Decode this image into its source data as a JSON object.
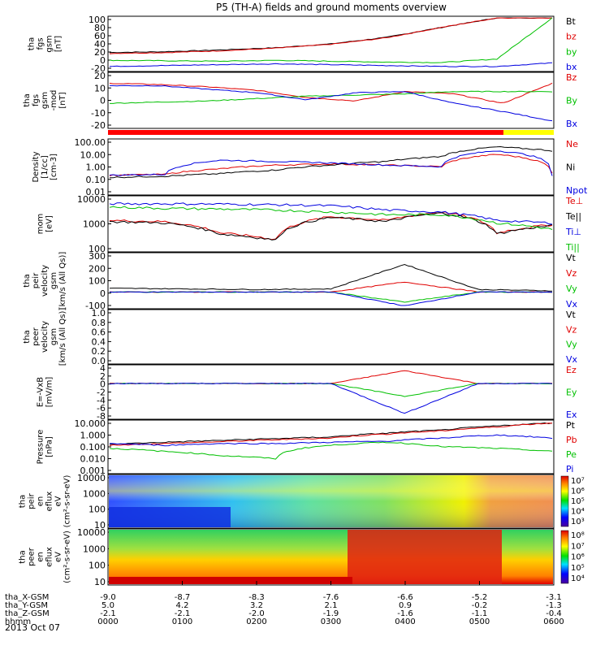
{
  "title": "P5 (TH-A) fields and ground moments overview",
  "date_label": "2013 Oct 07",
  "x_axis": {
    "rows": [
      {
        "label": "tha_X-GSM",
        "values": [
          "-9.0",
          "-8.7",
          "-8.3",
          "-7.6",
          "-6.6",
          "-5.2",
          "-3.1"
        ]
      },
      {
        "label": "tha_Y-GSM",
        "values": [
          "5.0",
          "4.2",
          "3.2",
          "2.1",
          "0.9",
          "-0.2",
          "-1.3"
        ]
      },
      {
        "label": "tha_Z-GSM",
        "values": [
          "-2.1",
          "-2.1",
          "-2.0",
          "-1.9",
          "-1.6",
          "-1.1",
          "-0.4"
        ]
      },
      {
        "label": "hhmm",
        "values": [
          "0000",
          "0100",
          "0200",
          "0300",
          "0400",
          "0500",
          "0600"
        ]
      }
    ]
  },
  "chart_data": [
    {
      "type": "line",
      "ylabel": [
        "tha",
        "fgs",
        "gsm",
        "[nT]"
      ],
      "yticks": [
        "100",
        "80",
        "60",
        "40",
        "20",
        "0",
        "-20"
      ],
      "ylim": [
        -20,
        100
      ],
      "series": [
        {
          "name": "Bt",
          "color": "#000000",
          "values": [
            20,
            22,
            26,
            31,
            40,
            55,
            78,
            100,
            100
          ]
        },
        {
          "name": "bz",
          "color": "#e00000",
          "values": [
            18,
            20,
            24,
            30,
            39,
            54,
            78,
            100,
            100
          ]
        },
        {
          "name": "by",
          "color": "#00c000",
          "values": [
            2,
            1,
            0,
            2,
            0,
            -2,
            -3,
            5,
            100
          ]
        },
        {
          "name": "bx",
          "color": "#0000e0",
          "values": [
            -12,
            -10,
            -8,
            -6,
            -8,
            -10,
            -12,
            -12,
            -4
          ]
        }
      ]
    },
    {
      "type": "line",
      "ylabel": [
        "tha",
        "fgs",
        "gsm",
        "-mod",
        "[nT]"
      ],
      "yticks": [
        "20",
        "10",
        "0",
        "-10",
        "-20"
      ],
      "ylim": [
        -25,
        20
      ],
      "series": [
        {
          "name": "Bz",
          "color": "#e00000",
          "values": [
            12,
            11,
            9,
            6,
            0,
            -3,
            5,
            3,
            -5,
            12
          ]
        },
        {
          "name": "By",
          "color": "#00c000",
          "values": [
            -5,
            -4,
            -3,
            -1,
            1,
            2,
            3,
            5,
            5,
            5
          ]
        },
        {
          "name": "Bx",
          "color": "#0000e0",
          "values": [
            10,
            10,
            7,
            4,
            -2,
            4,
            5,
            -5,
            -12,
            -20
          ]
        }
      ]
    },
    {
      "type": "line",
      "ylabel": [
        "Density",
        "[1/cc]",
        "[cm-3]"
      ],
      "yticks": [
        "100.00",
        "10.00",
        "1.00",
        "0.10",
        "0.01"
      ],
      "log": true,
      "ylim": [
        0.01,
        200
      ],
      "series": [
        {
          "name": "Ne",
          "color": "#e00000",
          "values": [
            0.3,
            0.35,
            1,
            2,
            2.5,
            2,
            1.5,
            15,
            0.5
          ]
        },
        {
          "name": "Ni",
          "color": "#000000",
          "values": [
            0.2,
            0.25,
            0.4,
            0.8,
            2,
            4,
            10,
            60,
            30
          ]
        },
        {
          "name": "Npot",
          "color": "#0000e0",
          "values": [
            0.3,
            0.35,
            5,
            4,
            3,
            2,
            1.5,
            30,
            0.3
          ]
        }
      ]
    },
    {
      "type": "line",
      "ylabel": [
        "mom",
        "[eV]"
      ],
      "yticks": [
        "10000",
        "1000",
        "100"
      ],
      "log": true,
      "ylim": [
        30,
        10000
      ],
      "series": [
        {
          "name": "Te⊥",
          "color": "#e00000",
          "values": [
            800,
            700,
            200,
            100,
            1200,
            800,
            2000,
            200,
            500
          ]
        },
        {
          "name": "Te||",
          "color": "#000000",
          "values": [
            700,
            600,
            180,
            90,
            1100,
            700,
            1800,
            180,
            450
          ]
        },
        {
          "name": "Ti⊥",
          "color": "#0000e0",
          "values": [
            5000,
            5000,
            4800,
            4500,
            4000,
            2500,
            2000,
            800,
            600
          ]
        },
        {
          "name": "Ti||",
          "color": "#00c000",
          "values": [
            3500,
            3000,
            2800,
            2500,
            2000,
            1500,
            1500,
            600,
            300
          ]
        }
      ]
    },
    {
      "type": "line",
      "ylabel": [
        "tha",
        "peir",
        "velocity",
        "gsm",
        "[km/s (All Qs)]"
      ],
      "yticks": [
        "300",
        "200",
        "100",
        "0",
        "-100"
      ],
      "ylim": [
        -120,
        300
      ],
      "series": [
        {
          "name": "Vt",
          "color": "#000000",
          "values": [
            30,
            25,
            20,
            25,
            220,
            20,
            10
          ]
        },
        {
          "name": "Vz",
          "color": "#e00000",
          "values": [
            0,
            0,
            0,
            0,
            80,
            0,
            0
          ]
        },
        {
          "name": "Vy",
          "color": "#00c000",
          "values": [
            0,
            0,
            0,
            0,
            -80,
            0,
            0
          ]
        },
        {
          "name": "Vx",
          "color": "#0000e0",
          "values": [
            0,
            0,
            0,
            0,
            -110,
            0,
            0
          ]
        }
      ]
    },
    {
      "type": "line",
      "ylabel": [
        "tha",
        "peer",
        "velocity",
        "gsm",
        "[km/s (All Qs)]"
      ],
      "yticks": [
        "1.0",
        "0.8",
        "0.6",
        "0.4",
        "0.2",
        "0.0"
      ],
      "ylim": [
        0,
        1
      ],
      "series": [
        {
          "name": "Vt",
          "color": "#000000",
          "values": []
        },
        {
          "name": "Vz",
          "color": "#e00000",
          "values": []
        },
        {
          "name": "Vy",
          "color": "#00c000",
          "values": []
        },
        {
          "name": "Vx",
          "color": "#0000e0",
          "values": []
        }
      ]
    },
    {
      "type": "line",
      "ylabel": [
        "E=-VxB",
        "[mV/m]"
      ],
      "yticks": [
        "4",
        "2",
        "0",
        "-2",
        "-4",
        "-6",
        "-8"
      ],
      "ylim": [
        -8,
        4
      ],
      "series": [
        {
          "name": "Ez",
          "color": "#e00000",
          "values": [
            0,
            0,
            0,
            0,
            3,
            0,
            0
          ]
        },
        {
          "name": "Ey",
          "color": "#00c000",
          "values": [
            0,
            0,
            0,
            0,
            -3,
            0,
            0
          ]
        },
        {
          "name": "Ex",
          "color": "#0000e0",
          "values": [
            0,
            0,
            0,
            0,
            -7,
            0,
            0
          ]
        }
      ]
    },
    {
      "type": "line",
      "ylabel": [
        "Pressure",
        "[nPa]"
      ],
      "yticks": [
        "10.000",
        "1.000",
        "0.100",
        "0.010",
        "0.001"
      ],
      "log": true,
      "ylim": [
        0.0005,
        40
      ],
      "series": [
        {
          "name": "Pt",
          "color": "#000000",
          "values": [
            0.25,
            0.4,
            0.6,
            0.9,
            1.3,
            3,
            6,
            15,
            30
          ]
        },
        {
          "name": "Pb",
          "color": "#e00000",
          "values": [
            0.2,
            0.3,
            0.45,
            0.7,
            1,
            2.5,
            5,
            12,
            30
          ]
        },
        {
          "name": "Pe",
          "color": "#00c000",
          "values": [
            0.1,
            0.05,
            0.02,
            0.01,
            0.2,
            0.4,
            0.15,
            0.1,
            0.05
          ]
        },
        {
          "name": "Pi",
          "color": "#0000e0",
          "values": [
            0.3,
            0.2,
            0.3,
            0.3,
            0.4,
            0.5,
            1,
            2,
            1
          ]
        }
      ]
    },
    {
      "type": "heatmap",
      "ylabel": [
        "tha",
        "peir",
        "en",
        "eflux",
        "eV",
        "(cm²-s-sr-eV)"
      ],
      "yticks": [
        "10000",
        "1000",
        "100",
        "10"
      ],
      "colorbar_ticks": [
        "10⁷",
        "10⁶",
        "10⁵",
        "10⁴",
        "10³"
      ]
    },
    {
      "type": "heatmap",
      "ylabel": [
        "tha",
        "peer",
        "en",
        "eflux",
        "eV",
        "(cm²-s-sr-eV)"
      ],
      "yticks": [
        "10000",
        "1000",
        "100",
        "10"
      ],
      "colorbar_ticks": [
        "10⁸",
        "10⁷",
        "10⁶",
        "10⁵",
        "10⁴"
      ]
    }
  ]
}
